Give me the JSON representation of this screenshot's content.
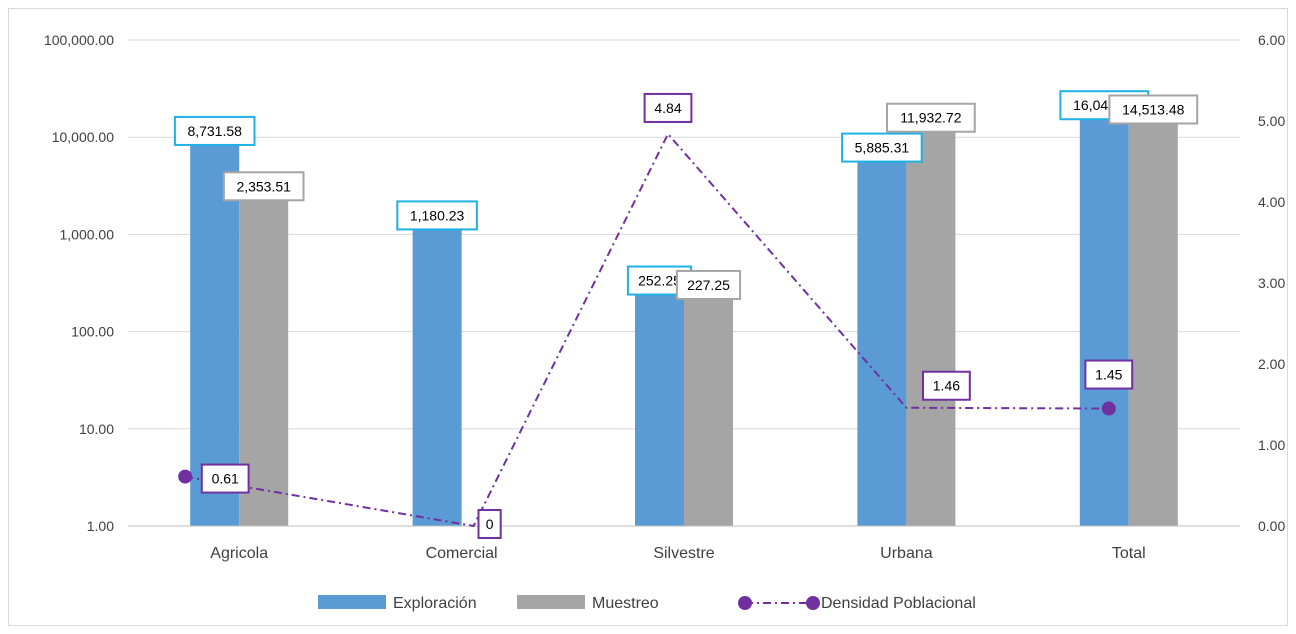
{
  "chart_data": {
    "type": "bar",
    "categories": [
      "Agricola",
      "Comercial",
      "Silvestre",
      "Urbana",
      "Total"
    ],
    "series": [
      {
        "name": "Exploración",
        "kind": "bar",
        "axis": "left",
        "color": "#5b9bd5",
        "label_border": "#1fb0e6",
        "values": [
          8731.58,
          1180.23,
          252.25,
          5885.31,
          16049.37
        ],
        "labels": [
          "8,731.58",
          "1,180.23",
          "252.25",
          "5,885.31",
          "16,049.37"
        ]
      },
      {
        "name": "Muestreo",
        "kind": "bar",
        "axis": "left",
        "color": "#a5a5a5",
        "label_border": "#a5a5a5",
        "values": [
          2353.51,
          null,
          227.25,
          11932.72,
          14513.48
        ],
        "labels": [
          "2,353.51",
          "",
          "227.25",
          "11,932.72",
          "14,513.48"
        ]
      },
      {
        "name": "Densidad Poblacional",
        "kind": "line",
        "axis": "right",
        "color": "#7030a0",
        "label_border": "#7030a0",
        "values": [
          0.61,
          0,
          4.84,
          1.46,
          1.45
        ],
        "labels": [
          "0.61",
          "0",
          "4.84",
          "1.46",
          "1.45"
        ]
      }
    ],
    "y_left": {
      "scale": "log",
      "ylim": [
        1,
        100000
      ],
      "ticks": [
        1,
        10,
        100,
        1000,
        10000,
        100000
      ],
      "tick_labels": [
        "1.00",
        "10.00",
        "100.00",
        "1,000.00",
        "10,000.00",
        "100,000.00"
      ]
    },
    "y_right": {
      "scale": "linear",
      "ylim": [
        0,
        6
      ],
      "ticks": [
        0,
        1,
        2,
        3,
        4,
        5,
        6
      ],
      "tick_labels": [
        "0.00",
        "1.00",
        "2.00",
        "3.00",
        "4.00",
        "5.00",
        "6.00"
      ]
    },
    "grid": true,
    "legend_position": "bottom",
    "gridline_color": "#d9d9d9"
  }
}
